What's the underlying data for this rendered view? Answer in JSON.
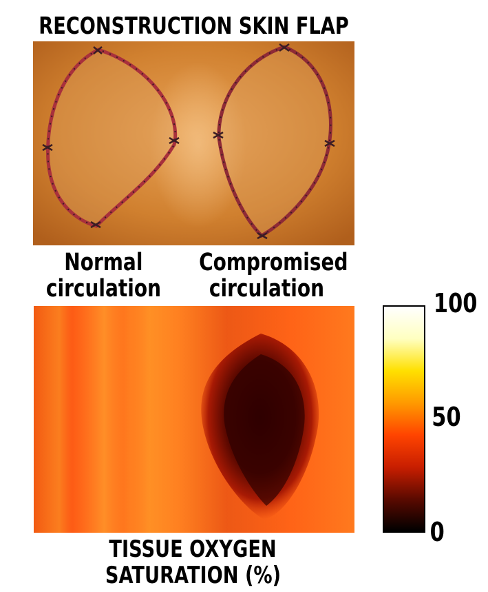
{
  "title": "RECONSTRUCTION SKIN FLAP",
  "captions": {
    "left": [
      "Normal",
      "circulation"
    ],
    "right": [
      "Compromised",
      "circulation"
    ]
  },
  "colorbar": {
    "ticks": [
      "100",
      "50",
      "0"
    ],
    "stops": [
      "#000000",
      "#5a0a00",
      "#c81e00",
      "#ff4400",
      "#ff9a00",
      "#ffe000",
      "#ffffc0",
      "#ffffff"
    ]
  },
  "bottom_title": [
    "TISSUE OXYGEN",
    "SATURATION (%)"
  ],
  "colors": {
    "skin": "#d07a2c",
    "suture": "#3a1d24",
    "heat_base": "#ff5a10",
    "heat_low": "#2a0000"
  }
}
